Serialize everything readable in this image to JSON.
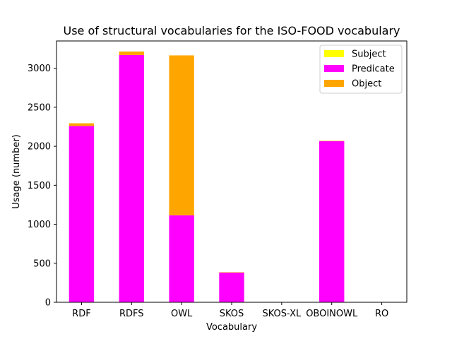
{
  "chart_data": {
    "type": "bar",
    "stacked": true,
    "title": "Use of structural vocabularies for the ISO-FOOD vocabulary",
    "xlabel": "Vocabulary",
    "ylabel": "Usage (number)",
    "categories": [
      "RDF",
      "RDFS",
      "OWL",
      "SKOS",
      "SKOS-XL",
      "OBOINOWL",
      "RO"
    ],
    "ylim": [
      0,
      3350
    ],
    "yticks": [
      0,
      500,
      1000,
      1500,
      2000,
      2500,
      3000
    ],
    "series": [
      {
        "name": "Subject",
        "color": "#ffff00",
        "values": [
          0,
          0,
          0,
          5,
          0,
          5,
          0
        ]
      },
      {
        "name": "Predicate",
        "color": "#ff00ff",
        "values": [
          2260,
          3170,
          1115,
          375,
          0,
          2060,
          0
        ]
      },
      {
        "name": "Object",
        "color": "#ffa500",
        "values": [
          35,
          45,
          2050,
          5,
          0,
          5,
          0
        ]
      }
    ],
    "legend_position": "top-right",
    "grid": false
  }
}
